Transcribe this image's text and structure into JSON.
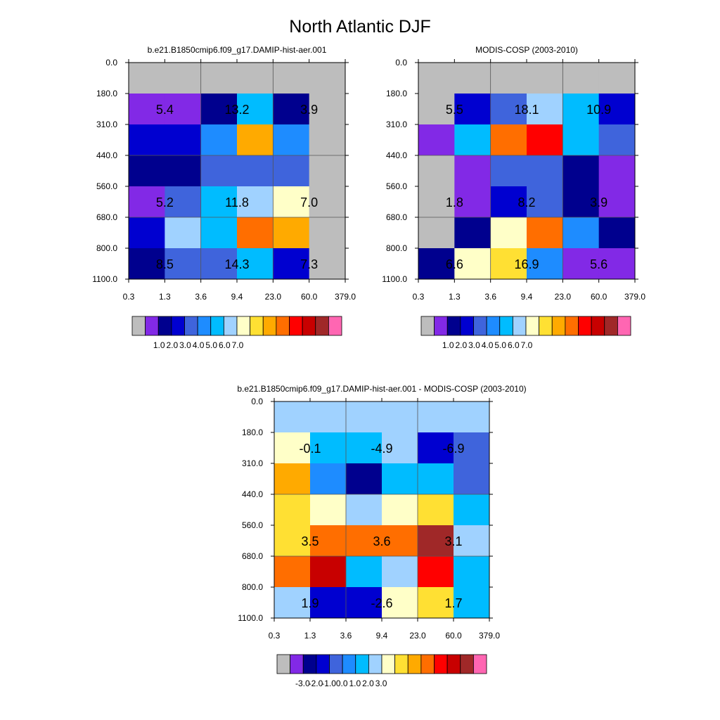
{
  "title": "North Atlantic DJF",
  "palette": [
    "#bdbdbd",
    "#8229e6",
    "#00008e",
    "#0000d0",
    "#3f64dc",
    "#1e8cff",
    "#00bcff",
    "#a0d2ff",
    "#ffffc8",
    "#ffe033",
    "#ffaa00",
    "#ff6e00",
    "#ff0000",
    "#c80000",
    "#a02828",
    "#ff66b2"
  ],
  "chart_data": [
    {
      "type": "heatmap",
      "title": "b.e21.B1850cmip6.f09_g17.DAMIP-hist-aer.001",
      "x_ticks": [
        "0.3",
        "1.3",
        "3.6",
        "9.4",
        "23.0",
        "60.0",
        "379.0"
      ],
      "y_ticks": [
        "0.0",
        "180.0",
        "310.0",
        "440.0",
        "560.0",
        "680.0",
        "800.0",
        "1100.0"
      ],
      "cell_colors": [
        [
          0,
          0,
          0,
          0,
          0,
          0
        ],
        [
          1,
          1,
          2,
          6,
          2,
          0
        ],
        [
          3,
          3,
          5,
          10,
          5,
          0
        ],
        [
          2,
          2,
          4,
          4,
          4,
          0
        ],
        [
          1,
          4,
          6,
          7,
          8,
          0
        ],
        [
          3,
          7,
          6,
          11,
          10,
          0
        ],
        [
          2,
          4,
          4,
          6,
          3,
          0
        ]
      ],
      "labels": [
        {
          "row": 1,
          "col": 0,
          "text": "5.4"
        },
        {
          "row": 1,
          "col": 2,
          "text": "13.2"
        },
        {
          "row": 1,
          "col": 4,
          "text": "3.9"
        },
        {
          "row": 4,
          "col": 0,
          "text": "5.2"
        },
        {
          "row": 4,
          "col": 2,
          "text": "11.8"
        },
        {
          "row": 4,
          "col": 4,
          "text": "7.0"
        },
        {
          "row": 6,
          "col": 0,
          "text": "8.5"
        },
        {
          "row": 6,
          "col": 2,
          "text": "14.3"
        },
        {
          "row": 6,
          "col": 4,
          "text": "7.3"
        }
      ],
      "colorbar_labels": [
        "1.0",
        "2.0",
        "3.0",
        "4.0",
        "5.0",
        "6.0",
        "7.0"
      ]
    },
    {
      "type": "heatmap",
      "title": "MODIS-COSP (2003-2010)",
      "x_ticks": [
        "0.3",
        "1.3",
        "3.6",
        "9.4",
        "23.0",
        "60.0",
        "379.0"
      ],
      "y_ticks": [
        "0.0",
        "180.0",
        "310.0",
        "440.0",
        "560.0",
        "680.0",
        "800.0",
        "1100.0"
      ],
      "cell_colors": [
        [
          0,
          0,
          0,
          0,
          0,
          0
        ],
        [
          0,
          3,
          4,
          7,
          6,
          3
        ],
        [
          1,
          6,
          11,
          12,
          6,
          4
        ],
        [
          0,
          1,
          4,
          4,
          2,
          1
        ],
        [
          0,
          1,
          3,
          4,
          2,
          1
        ],
        [
          0,
          2,
          8,
          11,
          5,
          2
        ],
        [
          2,
          8,
          9,
          5,
          1,
          1
        ]
      ],
      "labels": [
        {
          "row": 1,
          "col": 0,
          "text": "5.5"
        },
        {
          "row": 1,
          "col": 2,
          "text": "18.1"
        },
        {
          "row": 1,
          "col": 4,
          "text": "10.9"
        },
        {
          "row": 4,
          "col": 0,
          "text": "1.8"
        },
        {
          "row": 4,
          "col": 2,
          "text": "8.2"
        },
        {
          "row": 4,
          "col": 4,
          "text": "3.9"
        },
        {
          "row": 6,
          "col": 0,
          "text": "6.6"
        },
        {
          "row": 6,
          "col": 2,
          "text": "16.9"
        },
        {
          "row": 6,
          "col": 4,
          "text": "5.6"
        }
      ],
      "colorbar_labels": [
        "1.0",
        "2.0",
        "3.0",
        "4.0",
        "5.0",
        "6.0",
        "7.0"
      ]
    },
    {
      "type": "heatmap",
      "title": "b.e21.B1850cmip6.f09_g17.DAMIP-hist-aer.001 - MODIS-COSP (2003-2010)",
      "x_ticks": [
        "0.3",
        "1.3",
        "3.6",
        "9.4",
        "23.0",
        "60.0",
        "379.0"
      ],
      "y_ticks": [
        "0.0",
        "180.0",
        "310.0",
        "440.0",
        "560.0",
        "680.0",
        "800.0",
        "1100.0"
      ],
      "cell_colors": [
        [
          7,
          7,
          7,
          7,
          7,
          7
        ],
        [
          8,
          6,
          6,
          7,
          3,
          4
        ],
        [
          10,
          5,
          2,
          6,
          6,
          4
        ],
        [
          9,
          8,
          7,
          8,
          9,
          6
        ],
        [
          9,
          11,
          11,
          11,
          14,
          7
        ],
        [
          11,
          13,
          6,
          7,
          12,
          6
        ],
        [
          7,
          3,
          3,
          8,
          9,
          6
        ]
      ],
      "labels": [
        {
          "row": 1,
          "col": 0,
          "text": "-0.1"
        },
        {
          "row": 1,
          "col": 2,
          "text": "-4.9"
        },
        {
          "row": 1,
          "col": 4,
          "text": "-6.9"
        },
        {
          "row": 4,
          "col": 0,
          "text": "3.5"
        },
        {
          "row": 4,
          "col": 2,
          "text": "3.6"
        },
        {
          "row": 4,
          "col": 4,
          "text": "3.1"
        },
        {
          "row": 6,
          "col": 0,
          "text": "1.9"
        },
        {
          "row": 6,
          "col": 2,
          "text": "-2.6"
        },
        {
          "row": 6,
          "col": 4,
          "text": "1.7"
        }
      ],
      "colorbar_labels": [
        "-3.0",
        "-2.0",
        "-1.0",
        "0.0",
        "1.0",
        "2.0",
        "3.0"
      ]
    }
  ]
}
